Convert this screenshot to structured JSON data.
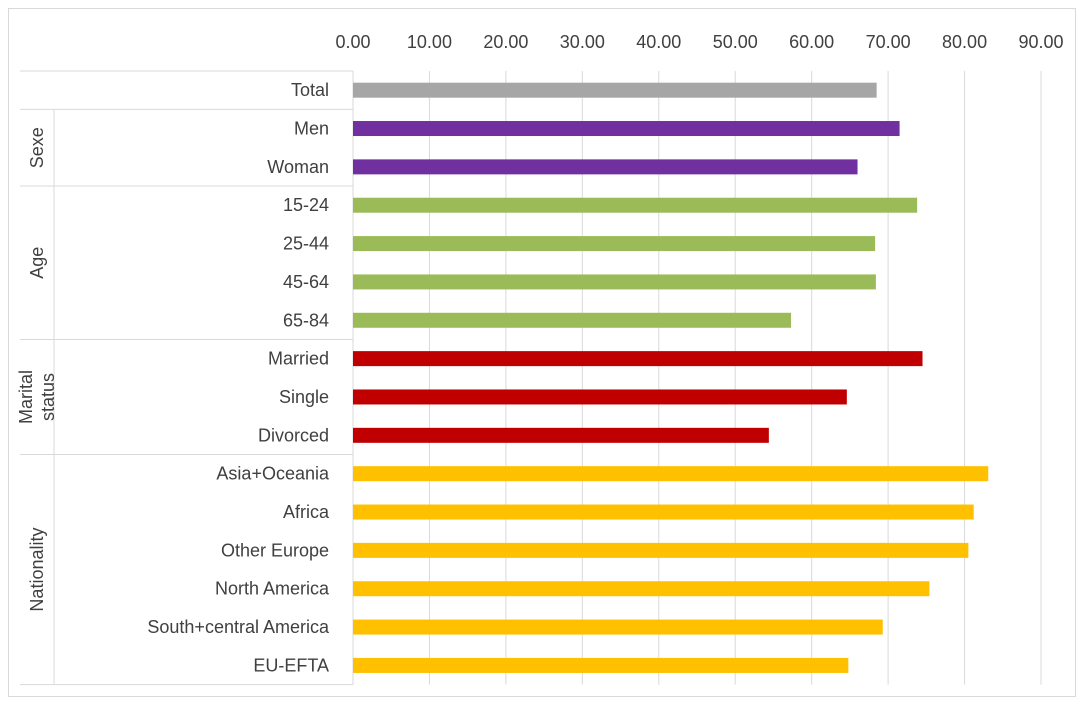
{
  "chart_data": {
    "type": "bar",
    "orientation": "horizontal",
    "xlim": [
      0,
      90
    ],
    "x_ticks": [
      "0.00",
      "10.00",
      "20.00",
      "30.00",
      "40.00",
      "50.00",
      "60.00",
      "70.00",
      "80.00",
      "90.00"
    ],
    "x_tick_values": [
      0,
      10,
      20,
      30,
      40,
      50,
      60,
      70,
      80,
      90
    ],
    "x_axis_position": "top",
    "grid": true,
    "legend": "none",
    "groups": [
      {
        "label": "",
        "color": "#a6a6a6",
        "items": [
          {
            "label": "Total",
            "value": 68.5
          }
        ]
      },
      {
        "label": "Sexe",
        "color": "#7030a0",
        "items": [
          {
            "label": "Men",
            "value": 71.5
          },
          {
            "label": "Woman",
            "value": 66.0
          }
        ]
      },
      {
        "label": "Age",
        "color": "#9bbb59",
        "items": [
          {
            "label": "15-24",
            "value": 73.8
          },
          {
            "label": "25-44",
            "value": 68.3
          },
          {
            "label": "45-64",
            "value": 68.4
          },
          {
            "label": "65-84",
            "value": 57.3
          }
        ]
      },
      {
        "label": "Marital status",
        "label_lines": [
          "Marital",
          "status"
        ],
        "color": "#c00000",
        "items": [
          {
            "label": "Married",
            "value": 74.5
          },
          {
            "label": "Single",
            "value": 64.6
          },
          {
            "label": "Divorced",
            "value": 54.4
          }
        ]
      },
      {
        "label": "Nationality",
        "color": "#ffc000",
        "items": [
          {
            "label": "Asia+Oceania",
            "value": 83.1
          },
          {
            "label": "Africa",
            "value": 81.2
          },
          {
            "label": "Other Europe",
            "value": 80.5
          },
          {
            "label": "North America",
            "value": 75.4
          },
          {
            "label": "South+central America",
            "value": 69.3
          },
          {
            "label": "EU-EFTA",
            "value": 64.8
          }
        ]
      }
    ]
  }
}
